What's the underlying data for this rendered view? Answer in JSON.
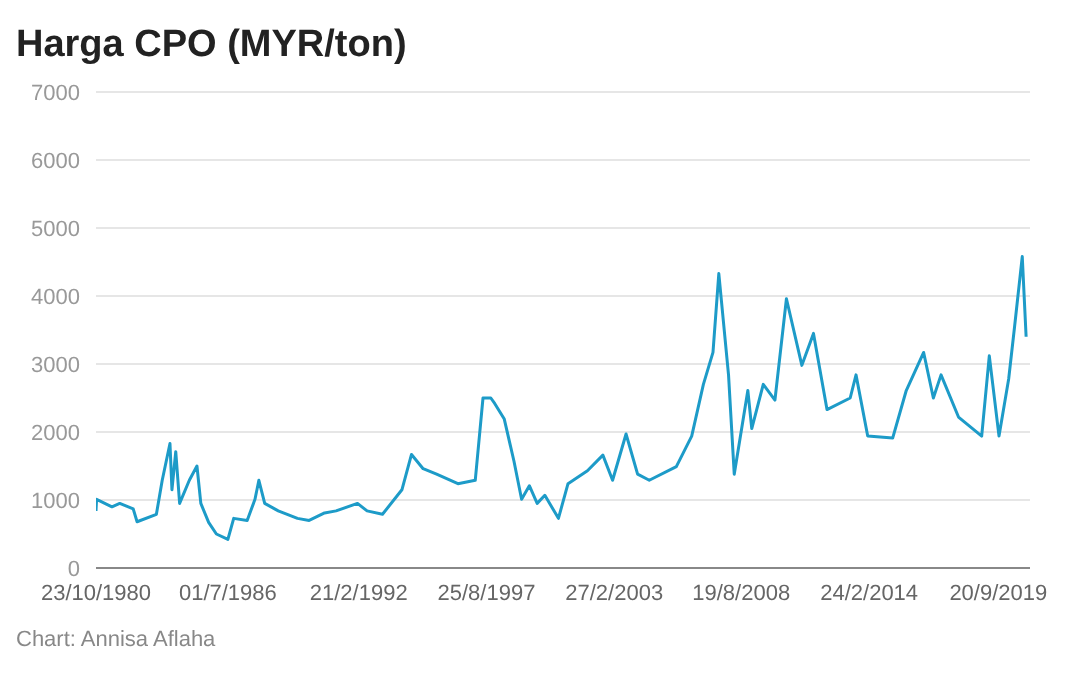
{
  "chart_data": {
    "type": "line",
    "title": "Harga CPO (MYR/ton)",
    "annotations": [
      "Chart: Annisa Aflaha"
    ],
    "x": [
      "1980-10-23",
      "1980-11",
      "1981-07",
      "1981-11",
      "1982-06",
      "1982-08",
      "1983-06",
      "1983-09",
      "1984-01",
      "1984-02",
      "1984-04",
      "1984-06",
      "1984-11",
      "1985-03",
      "1985-05",
      "1985-09",
      "1986-01",
      "1986-07",
      "1986-10",
      "1987-05",
      "1987-09",
      "1987-11",
      "1988-02",
      "1988-09",
      "1989-07",
      "1990-01",
      "1990-09",
      "1991-03",
      "1992-02",
      "1992-07",
      "1993-03",
      "1994-01",
      "1994-06",
      "1994-12",
      "1995-07",
      "1996-06",
      "1997-03",
      "1997-07",
      "1997-11",
      "1998-01",
      "1998-06",
      "1998-11",
      "1999-03",
      "1999-07",
      "1999-11",
      "2000-03",
      "2000-10",
      "2001-03",
      "2002-01",
      "2002-09",
      "2003-02",
      "2003-09",
      "2004-03",
      "2004-09",
      "2005-11",
      "2006-07",
      "2007-01",
      "2007-06",
      "2007-09",
      "2008-02",
      "2008-05",
      "2008-12",
      "2009-02",
      "2009-08",
      "2010-02",
      "2010-08",
      "2011-04",
      "2011-10",
      "2012-05",
      "2013-05",
      "2013-08",
      "2014-02",
      "2015-03",
      "2015-10",
      "2016-07",
      "2016-12",
      "2017-04",
      "2018-01",
      "2019-01",
      "2019-05",
      "2019-10",
      "2020-03",
      "2020-06",
      "2020-10",
      "2020-12"
    ],
    "values": [
      840,
      1010,
      900,
      950,
      870,
      680,
      790,
      1290,
      1830,
      1150,
      1710,
      950,
      1290,
      1500,
      950,
      670,
      500,
      420,
      730,
      700,
      1010,
      1290,
      950,
      840,
      730,
      700,
      810,
      840,
      950,
      840,
      790,
      1150,
      1670,
      1460,
      1380,
      1240,
      1290,
      2500,
      2500,
      2420,
      2190,
      1570,
      1010,
      1210,
      950,
      1070,
      730,
      1240,
      1430,
      1660,
      1290,
      1970,
      1380,
      1290,
      1490,
      1940,
      2700,
      3170,
      4330,
      2840,
      1380,
      2610,
      2050,
      2700,
      2470,
      3960,
      2980,
      3450,
      2330,
      2500,
      2840,
      1940,
      1910,
      2610,
      3170,
      2500,
      2840,
      2220,
      1940,
      3120,
      1940,
      2780,
      3540,
      4580,
      3400
    ],
    "color": "#1d9bc8",
    "xlim": [
      "1980-10-23",
      "2021-01-31"
    ],
    "xticks": [
      {
        "value": "1980-10-23",
        "label": "23/10/1980"
      },
      {
        "value": "1986-07-01",
        "label": "01/7/1986"
      },
      {
        "value": "1992-02-21",
        "label": "21/2/1992"
      },
      {
        "value": "1997-08-25",
        "label": "25/8/1997"
      },
      {
        "value": "2003-02-27",
        "label": "27/2/2003"
      },
      {
        "value": "2008-08-19",
        "label": "19/8/2008"
      },
      {
        "value": "2014-02-24",
        "label": "24/2/2014"
      },
      {
        "value": "2019-09-20",
        "label": "20/9/2019"
      }
    ],
    "ylim": [
      0,
      7000
    ],
    "yticks": [
      0,
      1000,
      2000,
      3000,
      4000,
      5000,
      6000,
      7000
    ],
    "grid": "y"
  }
}
